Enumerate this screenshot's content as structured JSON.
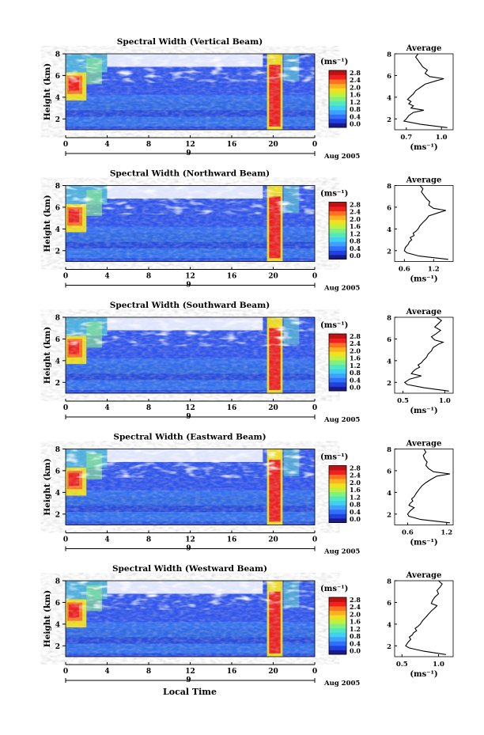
{
  "figure": {
    "xlabel": "Local Time",
    "xtick_labels": [
      "0",
      "4",
      "8",
      "12",
      "16",
      "20",
      "0"
    ],
    "date_label": "9",
    "month_label": "Aug 2005",
    "avg_title": "Average",
    "unit_label": "(ms⁻¹)",
    "ylabel": "Height (km)",
    "colorbar_colors": [
      "#1a1a8c",
      "#2040e0",
      "#3070ff",
      "#40a0ff",
      "#40d0f0",
      "#50e8c0",
      "#80f080",
      "#c0f040",
      "#f0e020",
      "#ffb020",
      "#ff7020",
      "#f02020",
      "#c01010"
    ]
  },
  "chart_data": [
    {
      "type": "heatmap",
      "title": "Spectral Width (Vertical Beam)",
      "x_range_hours": [
        0,
        24
      ],
      "ylim_km": [
        1,
        8
      ],
      "yticks": [
        2,
        4,
        6,
        8
      ],
      "colorbar_ticks": [
        "2.8",
        "2.4",
        "2.0",
        "1.6",
        "1.2",
        "0.8",
        "0.4",
        "0.0"
      ],
      "colorbar_range": [
        0.0,
        2.8
      ],
      "profile": {
        "title": "Average",
        "xlim": [
          0.6,
          1.1
        ],
        "xtick_labels": [
          "0.7",
          "1.0"
        ],
        "heights": [
          1.2,
          1.5,
          1.8,
          2.0,
          2.3,
          2.6,
          2.8,
          3.0,
          3.2,
          3.4,
          3.6,
          3.8,
          4.0,
          4.3,
          4.6,
          4.9,
          5.2,
          5.5,
          5.7,
          5.9,
          6.2,
          6.5,
          6.8,
          7.1,
          7.4,
          7.7,
          8.0
        ],
        "values": [
          1.05,
          0.82,
          0.68,
          0.7,
          0.72,
          0.76,
          0.85,
          0.74,
          0.76,
          0.72,
          0.74,
          0.71,
          0.73,
          0.76,
          0.78,
          0.82,
          0.86,
          0.95,
          1.02,
          0.9,
          0.86,
          0.88,
          0.84,
          0.82,
          0.8,
          0.78,
          0.8
        ]
      }
    },
    {
      "type": "heatmap",
      "title": "Spectral Width (Northward Beam)",
      "x_range_hours": [
        0,
        24
      ],
      "ylim_km": [
        1,
        8
      ],
      "yticks": [
        2,
        4,
        6,
        8
      ],
      "colorbar_ticks": [
        "2.8",
        "2.4",
        "2.0",
        "1.6",
        "1.2",
        "0.8",
        "0.4",
        "0.0"
      ],
      "colorbar_range": [
        0.0,
        2.8
      ],
      "profile": {
        "title": "Average",
        "xlim": [
          0.4,
          1.6
        ],
        "xtick_labels": [
          "0.6",
          "1.2"
        ],
        "heights": [
          1.2,
          1.5,
          1.8,
          2.0,
          2.3,
          2.6,
          2.8,
          3.0,
          3.2,
          3.4,
          3.6,
          3.8,
          4.0,
          4.3,
          4.6,
          4.9,
          5.2,
          5.5,
          5.7,
          5.9,
          6.2,
          6.5,
          6.8,
          7.1,
          7.4,
          7.7,
          8.0
        ],
        "values": [
          1.5,
          0.9,
          0.65,
          0.6,
          0.62,
          0.68,
          0.7,
          0.75,
          0.72,
          0.8,
          0.78,
          0.84,
          0.88,
          0.92,
          0.98,
          1.05,
          1.1,
          1.3,
          1.45,
          1.2,
          1.1,
          1.12,
          1.05,
          1.0,
          0.95,
          0.98,
          0.92
        ]
      }
    },
    {
      "type": "heatmap",
      "title": "Spectral Width (Southward Beam)",
      "x_range_hours": [
        0,
        24
      ],
      "ylim_km": [
        1,
        8
      ],
      "yticks": [
        2,
        4,
        6,
        8
      ],
      "colorbar_ticks": [
        "2.8",
        "2.4",
        "2.0",
        "1.6",
        "1.2",
        "0.8",
        "0.4",
        "0.0"
      ],
      "colorbar_range": [
        0.0,
        2.8
      ],
      "profile": {
        "title": "Average",
        "xlim": [
          0.4,
          1.1
        ],
        "xtick_labels": [
          "0.5",
          "1.0"
        ],
        "heights": [
          1.2,
          1.5,
          1.8,
          2.0,
          2.3,
          2.6,
          2.8,
          3.0,
          3.2,
          3.4,
          3.6,
          3.8,
          4.0,
          4.3,
          4.6,
          4.9,
          5.2,
          5.5,
          5.7,
          5.9,
          6.2,
          6.5,
          6.8,
          7.1,
          7.4,
          7.7,
          8.0
        ],
        "values": [
          1.05,
          0.75,
          0.55,
          0.52,
          0.58,
          0.72,
          0.6,
          0.62,
          0.65,
          0.7,
          0.68,
          0.72,
          0.74,
          0.78,
          0.8,
          0.84,
          0.86,
          0.92,
          0.98,
          0.88,
          0.84,
          0.9,
          0.95,
          0.88,
          0.92,
          0.96,
          0.9
        ]
      }
    },
    {
      "type": "heatmap",
      "title": "Spectral Width (Eastward Beam)",
      "x_range_hours": [
        0,
        24
      ],
      "ylim_km": [
        1,
        8
      ],
      "yticks": [
        2,
        4,
        6,
        8
      ],
      "colorbar_ticks": [
        "2.8",
        "2.4",
        "2.0",
        "1.6",
        "1.2",
        "0.8",
        "0.4",
        "0.0"
      ],
      "colorbar_range": [
        0.0,
        2.8
      ],
      "profile": {
        "title": "Average",
        "xlim": [
          0.4,
          1.3
        ],
        "xtick_labels": [
          "0.6",
          "1.2"
        ],
        "heights": [
          1.2,
          1.5,
          1.8,
          2.0,
          2.3,
          2.6,
          2.8,
          3.0,
          3.2,
          3.4,
          3.6,
          3.8,
          4.0,
          4.3,
          4.6,
          4.9,
          5.2,
          5.5,
          5.7,
          5.9,
          6.2,
          6.5,
          6.8,
          7.1,
          7.4,
          7.7,
          8.0
        ],
        "values": [
          1.25,
          0.8,
          0.62,
          0.6,
          0.64,
          0.7,
          0.62,
          0.64,
          0.68,
          0.66,
          0.7,
          0.72,
          0.74,
          0.78,
          0.82,
          0.88,
          0.96,
          1.05,
          1.25,
          1.0,
          0.92,
          0.88,
          0.9,
          0.86,
          0.84,
          0.88,
          0.85
        ]
      }
    },
    {
      "type": "heatmap",
      "title": "Spectral Width (Westward Beam)",
      "x_range_hours": [
        0,
        24
      ],
      "ylim_km": [
        1,
        8
      ],
      "yticks": [
        2,
        4,
        6,
        8
      ],
      "colorbar_ticks": [
        "2.8",
        "2.4",
        "2.0",
        "1.6",
        "1.2",
        "0.8",
        "0.4",
        "0.0"
      ],
      "colorbar_range": [
        0.0,
        2.8
      ],
      "profile": {
        "title": "Average",
        "xlim": [
          0.4,
          1.2
        ],
        "xtick_labels": [
          "0.5",
          "1.0"
        ],
        "heights": [
          1.2,
          1.5,
          1.8,
          2.0,
          2.3,
          2.6,
          2.8,
          3.0,
          3.2,
          3.4,
          3.6,
          3.8,
          4.0,
          4.3,
          4.6,
          4.9,
          5.2,
          5.5,
          5.7,
          5.9,
          6.2,
          6.5,
          6.8,
          7.1,
          7.4,
          7.7,
          8.0
        ],
        "values": [
          1.1,
          0.8,
          0.6,
          0.55,
          0.58,
          0.62,
          0.6,
          0.64,
          0.66,
          0.7,
          0.68,
          0.72,
          0.75,
          0.78,
          0.82,
          0.86,
          0.9,
          0.95,
          0.98,
          0.9,
          0.92,
          0.95,
          1.0,
          0.98,
          1.02,
          1.05,
          1.0
        ]
      }
    }
  ]
}
